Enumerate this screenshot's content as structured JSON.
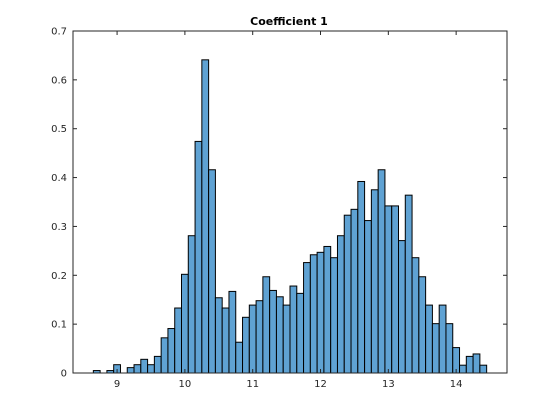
{
  "chart_data": {
    "type": "bar",
    "title": "Coefficient 1",
    "xlabel": "",
    "ylabel": "",
    "xlim": [
      8.35,
      14.75
    ],
    "ylim": [
      0,
      0.7
    ],
    "xticks": [
      9,
      10,
      11,
      12,
      13,
      14
    ],
    "yticks": [
      0,
      0.1,
      0.2,
      0.3,
      0.4,
      0.5,
      0.6,
      0.7
    ],
    "bin_width": 0.1,
    "bin_starts": [
      8.65,
      8.75,
      8.85,
      8.95,
      9.05,
      9.15,
      9.25,
      9.35,
      9.45,
      9.55,
      9.65,
      9.75,
      9.85,
      9.95,
      10.05,
      10.15,
      10.25,
      10.35,
      10.45,
      10.55,
      10.65,
      10.75,
      10.85,
      10.95,
      11.05,
      11.15,
      11.25,
      11.35,
      11.45,
      11.55,
      11.65,
      11.75,
      11.85,
      11.95,
      12.05,
      12.15,
      12.25,
      12.35,
      12.45,
      12.55,
      12.65,
      12.75,
      12.85,
      12.95,
      13.05,
      13.15,
      13.25,
      13.35,
      13.45,
      13.55,
      13.65,
      13.75,
      13.85,
      13.95,
      14.05,
      14.15,
      14.25,
      14.35
    ],
    "values": [
      0.005,
      0,
      0.005,
      0.017,
      0,
      0.011,
      0.017,
      0.028,
      0.017,
      0.034,
      0.072,
      0.091,
      0.133,
      0.202,
      0.281,
      0.474,
      0.641,
      0.416,
      0.154,
      0.133,
      0.167,
      0.063,
      0.114,
      0.139,
      0.148,
      0.197,
      0.169,
      0.156,
      0.139,
      0.178,
      0.163,
      0.226,
      0.242,
      0.247,
      0.259,
      0.236,
      0.281,
      0.323,
      0.335,
      0.392,
      0.312,
      0.375,
      0.416,
      0.342,
      0.342,
      0.271,
      0.364,
      0.236,
      0.197,
      0.139,
      0.101,
      0.139,
      0.101,
      0.052,
      0.016,
      0.034,
      0.039,
      0.016
    ],
    "grid": false,
    "colors": {
      "bar_fill": "#5fa2d3",
      "bar_edge": "#000000",
      "axis": "#262626",
      "background": "#ffffff"
    }
  }
}
